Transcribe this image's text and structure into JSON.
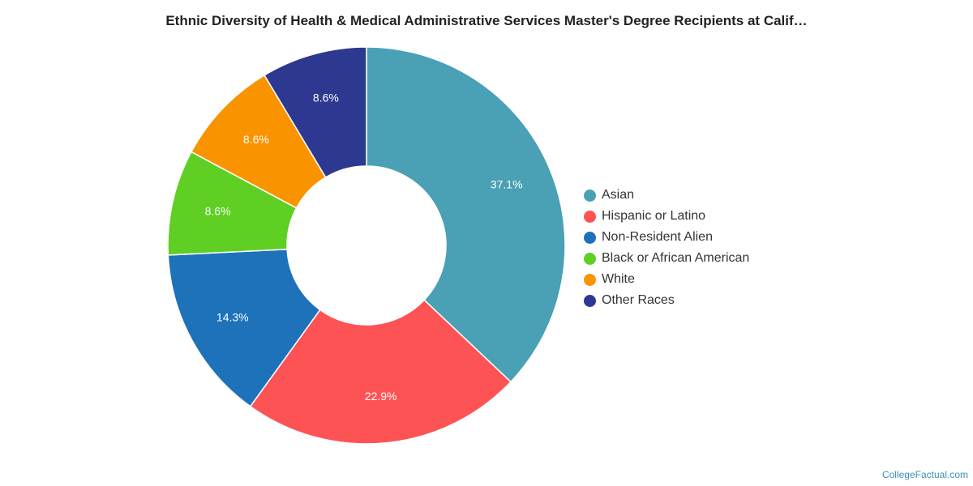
{
  "chart_data": {
    "type": "pie",
    "title": "Ethnic Diversity of Health & Medical Administrative Services Master's Degree Recipients at Calif…",
    "donut": true,
    "legend_position": "right",
    "categories": [
      "Asian",
      "Hispanic or Latino",
      "Non-Resident Alien",
      "Black or African American",
      "White",
      "Other Races"
    ],
    "values": [
      37.1,
      22.9,
      14.3,
      8.6,
      8.6,
      8.6
    ],
    "labels": [
      "37.1%",
      "22.9%",
      "14.3%",
      "8.6%",
      "8.6%",
      "8.6%"
    ],
    "colors": [
      "#4aa0b4",
      "#fe5354",
      "#1e72b9",
      "#5fcf24",
      "#f99400",
      "#2d3991"
    ]
  },
  "credit": "CollegeFactual.com"
}
